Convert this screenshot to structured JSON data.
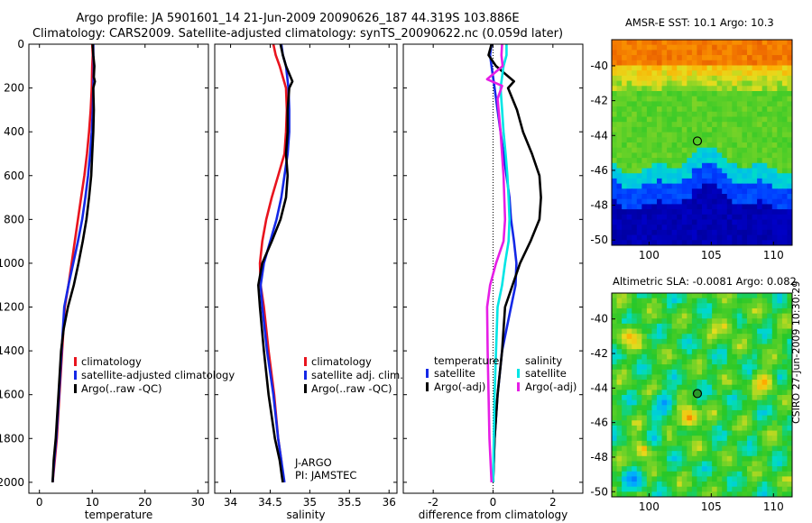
{
  "header": {
    "line1": "Argo profile: JA 5901601_14 21-Jun-2009 20090626_187 44.319S 103.886E",
    "line2": "Climatology: CARS2009. Satellite-adjusted climatology: synTS_20090622.nc (0.059d later)"
  },
  "chart_data": [
    {
      "type": "line",
      "xlabel": "temperature",
      "ylabel": "",
      "xlim": [
        -2,
        32
      ],
      "ylim": [
        2050,
        0
      ],
      "xticks": [
        0,
        10,
        20,
        30
      ],
      "yticks": [
        0,
        200,
        400,
        600,
        800,
        1000,
        1200,
        1400,
        1600,
        1800,
        2000
      ],
      "legend": [
        "climatology",
        "satellite-adjusted climatology",
        "Argo(..raw -QC)"
      ],
      "series": [
        {
          "name": "climatology",
          "color": "#e8141e",
          "x": [
            10.0,
            10.1,
            10.0,
            9.9,
            9.7,
            9.4,
            9.0,
            8.5,
            7.9,
            7.3,
            6.7,
            6.1,
            5.5,
            4.8,
            4.3,
            3.8,
            3.3,
            2.9,
            2.5
          ],
          "y": [
            0,
            50,
            100,
            200,
            300,
            400,
            500,
            600,
            700,
            800,
            900,
            1000,
            1100,
            1200,
            1400,
            1600,
            1800,
            1900,
            2000
          ]
        },
        {
          "name": "satellite-adjusted climatology",
          "color": "#1428e6",
          "x": [
            10.2,
            10.2,
            10.3,
            10.2,
            10.1,
            9.9,
            9.6,
            9.2,
            8.7,
            8.1,
            7.3,
            6.4,
            5.5,
            4.7,
            4.2,
            3.7,
            3.2,
            2.8,
            2.5
          ],
          "y": [
            0,
            50,
            100,
            200,
            300,
            400,
            500,
            600,
            700,
            800,
            900,
            1000,
            1100,
            1200,
            1400,
            1600,
            1800,
            1900,
            2000
          ]
        },
        {
          "name": "Argo(..raw -QC)",
          "color": "#000000",
          "x": [
            10.1,
            10.2,
            10.4,
            10.3,
            10.5,
            10.2,
            10.3,
            10.2,
            10.0,
            9.8,
            9.4,
            8.9,
            8.2,
            7.4,
            6.5,
            5.4,
            4.6,
            4.1,
            3.6,
            3.1,
            2.7,
            2.5
          ],
          "y": [
            0,
            50,
            100,
            150,
            170,
            200,
            300,
            400,
            500,
            600,
            700,
            800,
            900,
            1000,
            1100,
            1200,
            1300,
            1400,
            1600,
            1800,
            1900,
            2000
          ]
        }
      ]
    },
    {
      "type": "line",
      "xlabel": "salinity",
      "ylabel": "",
      "xlim": [
        33.8,
        36.1
      ],
      "ylim": [
        2050,
        0
      ],
      "xticks": [
        34,
        34.5,
        35,
        35.5,
        36
      ],
      "annotation": [
        "J-ARGO",
        "PI: JAMSTEC"
      ],
      "legend": [
        "climatology",
        "satellite adj. clim.",
        "Argo(..raw -QC)"
      ],
      "series": [
        {
          "name": "climatology",
          "color": "#e8141e",
          "x": [
            34.54,
            34.57,
            34.62,
            34.7,
            34.71,
            34.7,
            34.68,
            34.6,
            34.52,
            34.45,
            34.4,
            34.37,
            34.38,
            34.42,
            34.48,
            34.55,
            34.6,
            34.64,
            34.66
          ],
          "y": [
            0,
            50,
            100,
            200,
            300,
            400,
            500,
            600,
            700,
            800,
            900,
            1000,
            1100,
            1200,
            1400,
            1600,
            1800,
            1900,
            2000
          ]
        },
        {
          "name": "satellite adj. clim.",
          "color": "#1428e6",
          "x": [
            34.64,
            34.66,
            34.7,
            34.73,
            34.74,
            34.74,
            34.72,
            34.68,
            34.64,
            34.58,
            34.5,
            34.42,
            34.38,
            34.4,
            34.46,
            34.54,
            34.6,
            34.64,
            34.68
          ],
          "y": [
            0,
            50,
            100,
            200,
            300,
            400,
            500,
            600,
            700,
            800,
            900,
            1000,
            1100,
            1200,
            1400,
            1600,
            1800,
            1900,
            2000
          ]
        },
        {
          "name": "Argo(..raw -QC)",
          "color": "#000000",
          "x": [
            34.63,
            34.66,
            34.7,
            34.78,
            34.74,
            34.72,
            34.72,
            34.7,
            34.72,
            34.7,
            34.63,
            34.52,
            34.4,
            34.35,
            34.37,
            34.42,
            34.48,
            34.56,
            34.62,
            34.65,
            34.66
          ],
          "y": [
            0,
            50,
            100,
            170,
            200,
            300,
            400,
            500,
            600,
            700,
            800,
            900,
            1000,
            1100,
            1200,
            1400,
            1600,
            1800,
            1900,
            1980,
            2000
          ]
        }
      ]
    },
    {
      "type": "line",
      "xlabel": "difference from climatology",
      "ylabel": "",
      "xlim": [
        -3,
        3
      ],
      "ylim": [
        2050,
        0
      ],
      "xticks": [
        -2,
        0,
        2
      ],
      "legend": [
        "temperature",
        "satellite",
        "Argo(-adj)",
        "salinity",
        "satellite",
        "Argo(-adj)"
      ],
      "series": [
        {
          "name": "temperature satellite",
          "color": "#1428e6",
          "x": [
            -0.05,
            -0.1,
            -0.05,
            0.05,
            0.15,
            0.25,
            0.35,
            0.45,
            0.55,
            0.6,
            0.7,
            0.78,
            0.75,
            0.6,
            0.3,
            0.15,
            0.05,
            0.0
          ],
          "y": [
            0,
            50,
            100,
            200,
            300,
            400,
            500,
            600,
            700,
            800,
            900,
            1000,
            1100,
            1200,
            1400,
            1600,
            1800,
            2000
          ]
        },
        {
          "name": "temperature Argo(-adj)",
          "color": "#000000",
          "x": [
            -0.05,
            -0.15,
            0.1,
            0.7,
            0.5,
            0.8,
            1.0,
            1.3,
            1.55,
            1.6,
            1.55,
            1.25,
            0.9,
            0.65,
            0.4,
            0.3,
            0.15,
            0.05,
            0.0
          ],
          "y": [
            0,
            50,
            100,
            170,
            200,
            300,
            400,
            500,
            600,
            700,
            800,
            900,
            1000,
            1100,
            1200,
            1400,
            1600,
            1800,
            2000
          ]
        },
        {
          "name": "salinity satellite",
          "color": "#00e5e5",
          "x": [
            0.45,
            0.45,
            0.35,
            0.25,
            0.3,
            0.35,
            0.42,
            0.48,
            0.52,
            0.55,
            0.52,
            0.4,
            0.3,
            0.15,
            0.1,
            0.05,
            0.0
          ],
          "y": [
            0,
            50,
            100,
            200,
            300,
            400,
            500,
            600,
            700,
            800,
            900,
            1000,
            1100,
            1200,
            1400,
            1600,
            2000
          ]
        },
        {
          "name": "salinity Argo(-adj)",
          "color": "#e61ee6",
          "x": [
            0.3,
            0.28,
            0.32,
            -0.2,
            0.3,
            0.15,
            0.25,
            0.35,
            0.4,
            0.35,
            0.1,
            -0.1,
            -0.2,
            -0.18,
            -0.15,
            -0.12,
            -0.05
          ],
          "y": [
            0,
            50,
            100,
            160,
            190,
            250,
            400,
            600,
            800,
            900,
            1000,
            1100,
            1200,
            1400,
            1600,
            1800,
            2000
          ]
        }
      ]
    },
    {
      "type": "heatmap",
      "title": "AMSR-E SST: 10.1 Argo: 10.3",
      "xlim": [
        97,
        111.5
      ],
      "ylim": [
        -50.3,
        -38.5
      ],
      "xticks": [
        100,
        105,
        110
      ],
      "yticks": [
        -40,
        -42,
        -44,
        -46,
        -48,
        -50
      ],
      "marker": {
        "lon": 103.886,
        "lat": -44.319
      }
    },
    {
      "type": "heatmap",
      "title": "Altimetric SLA: -0.0081 Argo: 0.082",
      "xlim": [
        97,
        111.5
      ],
      "ylim": [
        -50.3,
        -38.5
      ],
      "xticks": [
        100,
        105,
        110
      ],
      "yticks": [
        -40,
        -42,
        -44,
        -46,
        -48,
        -50
      ],
      "marker": {
        "lon": 103.886,
        "lat": -44.319
      }
    }
  ],
  "footer": {
    "stamp": "CSIRO 27-Jun-2009 10:30:29"
  }
}
